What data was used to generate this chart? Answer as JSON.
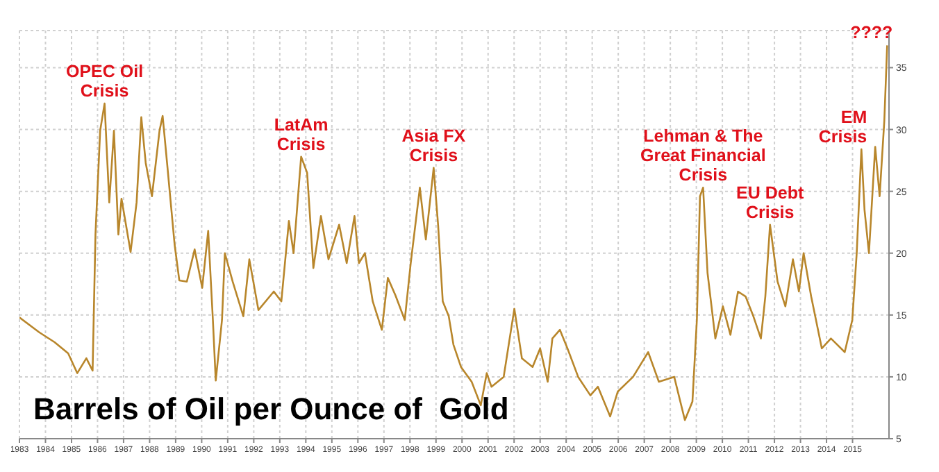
{
  "chart_data": {
    "type": "line",
    "title": "Barrels of Oil per Ounce of  Gold",
    "x": [
      1983.0,
      1983.76,
      1984.35,
      1984.87,
      1985.22,
      1985.57,
      1985.81,
      1985.92,
      1986.1,
      1986.27,
      1986.45,
      1986.63,
      1986.8,
      1986.92,
      1987.27,
      1987.5,
      1987.68,
      1987.85,
      1988.09,
      1988.38,
      1988.5,
      1988.67,
      1988.96,
      1989.14,
      1989.43,
      1989.73,
      1990.02,
      1990.25,
      1990.43,
      1990.54,
      1990.78,
      1990.89,
      1991.19,
      1991.6,
      1991.83,
      1992.18,
      1992.77,
      1993.06,
      1993.35,
      1993.53,
      1993.82,
      1994.05,
      1994.29,
      1994.58,
      1994.87,
      1995.28,
      1995.57,
      1995.87,
      1996.04,
      1996.27,
      1996.57,
      1996.92,
      1997.15,
      1997.44,
      1997.8,
      1998.03,
      1998.38,
      1998.61,
      1998.91,
      1999.08,
      1999.26,
      1999.49,
      1999.67,
      1999.96,
      2000.37,
      2000.72,
      2000.95,
      2001.13,
      2001.6,
      2001.83,
      2002.01,
      2002.3,
      2002.71,
      2003.0,
      2003.29,
      2003.47,
      2003.76,
      2004.05,
      2004.46,
      2004.93,
      2005.22,
      2005.69,
      2005.98,
      2006.57,
      2007.15,
      2007.56,
      2008.15,
      2008.56,
      2008.85,
      2009.02,
      2009.14,
      2009.26,
      2009.43,
      2009.73,
      2010.02,
      2010.31,
      2010.6,
      2010.89,
      2011.19,
      2011.48,
      2011.65,
      2011.83,
      2012.12,
      2012.42,
      2012.71,
      2012.94,
      2013.12,
      2013.41,
      2013.82,
      2014.17,
      2014.7,
      2014.99,
      2015.16,
      2015.34,
      2015.46,
      2015.63,
      2015.87,
      2016.04,
      2016.22,
      2016.33
    ],
    "series": [
      {
        "color": "#b8862b",
        "values": [
          14.8,
          13.6,
          12.8,
          11.9,
          10.3,
          11.5,
          10.5,
          21.5,
          29.9,
          32.1,
          24.1,
          29.9,
          21.5,
          24.4,
          20.1,
          24.1,
          31.0,
          27.3,
          24.6,
          29.9,
          31.1,
          27.3,
          20.7,
          17.8,
          17.7,
          20.3,
          17.2,
          21.8,
          14.6,
          9.7,
          14.6,
          20.0,
          17.7,
          14.9,
          19.5,
          15.4,
          16.9,
          16.1,
          22.6,
          20.0,
          27.8,
          26.5,
          18.8,
          23.0,
          19.5,
          22.3,
          19.2,
          23.0,
          19.2,
          20.0,
          16.1,
          13.8,
          18.0,
          16.6,
          14.6,
          19.2,
          25.3,
          21.1,
          26.9,
          22.3,
          16.1,
          14.9,
          12.6,
          10.8,
          9.6,
          7.7,
          10.3,
          9.2,
          10.0,
          13.1,
          15.5,
          11.5,
          10.8,
          12.3,
          9.6,
          13.1,
          13.8,
          12.3,
          10.0,
          8.5,
          9.2,
          6.8,
          8.8,
          10.0,
          12.0,
          9.6,
          10.0,
          6.5,
          8.0,
          14.6,
          24.6,
          25.3,
          18.4,
          13.1,
          15.7,
          13.4,
          16.9,
          16.5,
          14.9,
          13.1,
          16.5,
          22.3,
          17.7,
          15.7,
          19.5,
          16.9,
          20.0,
          16.5,
          12.3,
          13.1,
          12.0,
          14.6,
          20.0,
          28.4,
          23.5,
          20.0,
          28.6,
          24.6,
          30.7,
          36.8
        ]
      }
    ],
    "xlim": [
      1983,
      2016.4
    ],
    "xticks": [
      1983,
      1984,
      1985,
      1986,
      1987,
      1988,
      1989,
      1990,
      1991,
      1992,
      1993,
      1994,
      1995,
      1996,
      1997,
      1998,
      1999,
      2000,
      2001,
      2002,
      2003,
      2004,
      2005,
      2006,
      2007,
      2008,
      2009,
      2010,
      2011,
      2012,
      2013,
      2014,
      2015
    ],
    "ylim": [
      5,
      38
    ],
    "yticks": [
      5,
      10,
      15,
      20,
      25,
      30,
      35
    ],
    "grid": true,
    "legend": false,
    "marker": "none",
    "line_style": "solid",
    "annotations": [
      {
        "text": "OPEC Oil\nCrisis",
        "x": 1986.27,
        "y": 32.1
      },
      {
        "text": "LatAm\nCrisis",
        "x": 1993.82,
        "y": 27.8
      },
      {
        "text": "Asia FX\nCrisis",
        "x": 1998.91,
        "y": 26.9
      },
      {
        "text": "Lehman & The\nGreat Financial\nCrisis",
        "x": 2009.26,
        "y": 25.3
      },
      {
        "text": "EU Debt\nCrisis",
        "x": 2011.83,
        "y": 22.3
      },
      {
        "text": "EM\nCrisis",
        "x": 2015.34,
        "y": 28.4
      },
      {
        "text": "????",
        "x": 2016.33,
        "y": 36.8
      }
    ]
  }
}
